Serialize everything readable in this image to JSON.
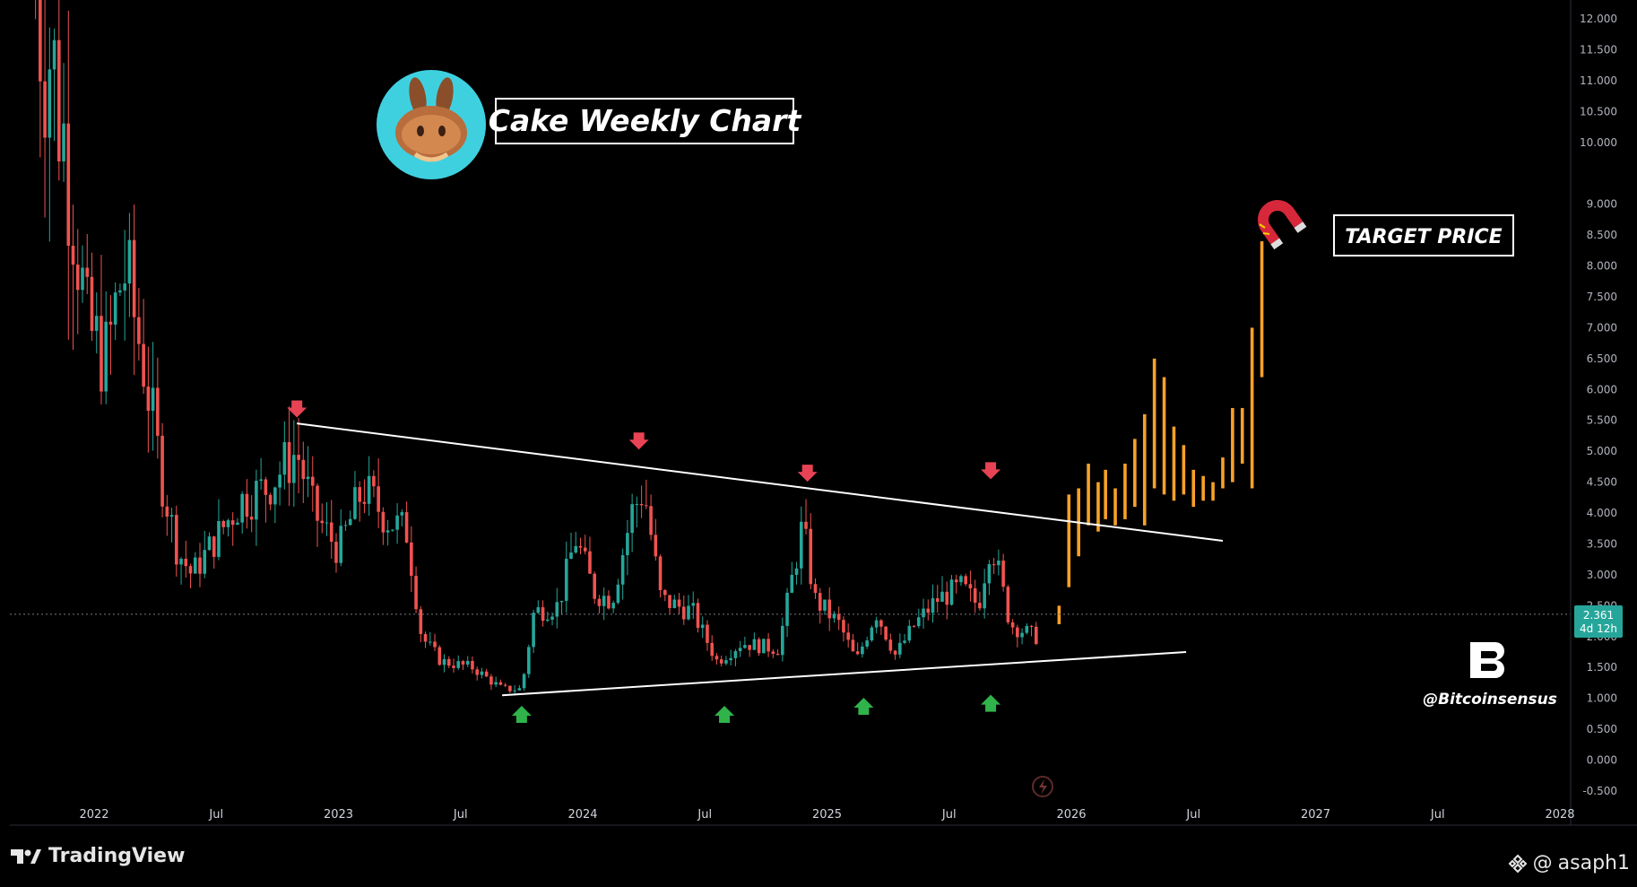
{
  "chart_data": {
    "type": "candlestick",
    "title": "Cake Weekly Chart",
    "annotation_target": "TARGET PRICE",
    "watermark": "@Bitcoinsensus",
    "last_price_label": "2.361",
    "countdown_label": "4d 12h",
    "last_price": 2.361,
    "y_ticks": [
      "12.000",
      "11.500",
      "11.000",
      "10.500",
      "10.000",
      "9.000",
      "8.500",
      "8.000",
      "7.500",
      "7.000",
      "6.500",
      "6.000",
      "5.500",
      "5.000",
      "4.500",
      "4.000",
      "3.500",
      "3.000",
      "2.500",
      "2.000",
      "1.500",
      "1.000",
      "0.500",
      "0.000",
      "-0.500"
    ],
    "y_tick_values": [
      12,
      11.5,
      11,
      10.5,
      10,
      9,
      8.5,
      8,
      7.5,
      7,
      6.5,
      6,
      5.5,
      5,
      4.5,
      4,
      3.5,
      3,
      2.5,
      2,
      1.5,
      1,
      0.5,
      0,
      -0.5
    ],
    "ylim": [
      -0.5,
      12.2
    ],
    "x_ticks": [
      {
        "label": "2022",
        "t": 2022.0
      },
      {
        "label": "Jul",
        "t": 2022.5
      },
      {
        "label": "2023",
        "t": 2023.0
      },
      {
        "label": "Jul",
        "t": 2023.5
      },
      {
        "label": "2024",
        "t": 2024.0
      },
      {
        "label": "Jul",
        "t": 2024.5
      },
      {
        "label": "2025",
        "t": 2025.0
      },
      {
        "label": "Jul",
        "t": 2025.5
      },
      {
        "label": "2026",
        "t": 2026.0
      },
      {
        "label": "Jul",
        "t": 2026.5
      },
      {
        "label": "2027",
        "t": 2027.0
      },
      {
        "label": "Jul",
        "t": 2027.5
      },
      {
        "label": "2028",
        "t": 2028.0
      }
    ],
    "xlim": [
      2021.68,
      2028.0
    ],
    "trendlines": [
      {
        "name": "resistance",
        "from": [
          2022.83,
          5.45
        ],
        "to": [
          2026.62,
          3.55
        ]
      },
      {
        "name": "support",
        "from": [
          2023.67,
          1.05
        ],
        "to": [
          2026.47,
          1.75
        ]
      }
    ],
    "markers_down": [
      [
        2022.83,
        5.62
      ],
      [
        2024.23,
        5.1
      ],
      [
        2024.92,
        4.58
      ],
      [
        2025.67,
        4.62
      ]
    ],
    "markers_up": [
      [
        2023.75,
        0.72
      ],
      [
        2024.58,
        0.72
      ],
      [
        2025.15,
        0.85
      ],
      [
        2025.67,
        0.9
      ]
    ],
    "projection": {
      "color": "#f7a128",
      "bars": [
        [
          2025.95,
          2.2,
          2.5
        ],
        [
          2025.99,
          2.8,
          4.3
        ],
        [
          2026.03,
          3.3,
          4.4
        ],
        [
          2026.07,
          3.8,
          4.8
        ],
        [
          2026.11,
          3.7,
          4.5
        ],
        [
          2026.14,
          3.9,
          4.7
        ],
        [
          2026.18,
          3.8,
          4.4
        ],
        [
          2026.22,
          3.9,
          4.8
        ],
        [
          2026.26,
          4.1,
          5.2
        ],
        [
          2026.3,
          3.8,
          5.6
        ],
        [
          2026.34,
          4.4,
          6.5
        ],
        [
          2026.38,
          4.3,
          6.2
        ],
        [
          2026.42,
          4.2,
          5.4
        ],
        [
          2026.46,
          4.3,
          5.1
        ],
        [
          2026.5,
          4.1,
          4.7
        ],
        [
          2026.54,
          4.2,
          4.6
        ],
        [
          2026.58,
          4.2,
          4.5
        ],
        [
          2026.62,
          4.4,
          4.9
        ],
        [
          2026.66,
          4.5,
          5.7
        ],
        [
          2026.7,
          4.8,
          5.7
        ],
        [
          2026.74,
          4.4,
          7.0
        ],
        [
          2026.78,
          6.2,
          8.4
        ]
      ]
    },
    "series_colors": {
      "up": "#26a69a",
      "down": "#ef5350",
      "trend": "#ffffff"
    }
  },
  "footer": {
    "brand": "TradingView",
    "user": "asaph1"
  }
}
